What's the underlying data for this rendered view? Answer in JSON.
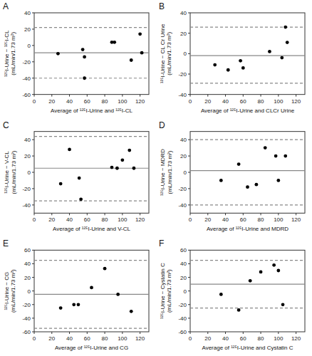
{
  "chart_data": [
    {
      "type": "scatter",
      "title": "A",
      "x_label": "Average of ¹²⁵I-Urine and ¹²⁵I-CL",
      "y_label": "¹²⁵I-Urine − ¹²⁵I-CL (mL/min/1.73 m²)",
      "x": [
        27,
        55,
        57,
        57,
        88,
        91,
        110,
        120,
        122
      ],
      "values": [
        -10,
        -5,
        -14,
        -40,
        4,
        4,
        -18,
        14,
        -9
      ],
      "color": "black",
      "lines": [
        {
          "value": -9,
          "color": "#888888",
          "line_style": "solid"
        },
        {
          "value": 22,
          "color": "#888888",
          "line_style": "dashed"
        },
        {
          "value": -40,
          "color": "#888888",
          "line_style": "dashed"
        }
      ],
      "xlim": [
        0,
        130
      ],
      "xticks": [
        0,
        20,
        40,
        60,
        80,
        100,
        120
      ],
      "ylim": [
        -60,
        40
      ],
      "yticks": [
        -60,
        -40,
        -20,
        0,
        20,
        40
      ],
      "grid": false
    },
    {
      "type": "scatter",
      "title": "B",
      "x_label": "Average of ¹²⁵I-Urine and CLCr Urine",
      "y_label": "¹²⁵I-Urine − CL Cr Urine (mL/min/1.73 m²)",
      "x": [
        28,
        43,
        57,
        60,
        90,
        104,
        108,
        110
      ],
      "values": [
        -11,
        -16,
        -7,
        -14,
        2,
        -4,
        26,
        11
      ],
      "color": "black",
      "lines": [
        {
          "value": -2,
          "color": "#888888",
          "line_style": "solid"
        },
        {
          "value": 26,
          "color": "#888888",
          "line_style": "dashed"
        },
        {
          "value": -29,
          "color": "#888888",
          "line_style": "dashed"
        }
      ],
      "xlim": [
        0,
        130
      ],
      "xticks": [
        0,
        20,
        40,
        60,
        80,
        100,
        120
      ],
      "ylim": [
        -40,
        40
      ],
      "yticks": [
        -40,
        -20,
        0,
        20,
        40
      ],
      "grid": false
    },
    {
      "type": "scatter",
      "title": "C",
      "x_label": "Average of ¹²⁵I-Urine and V-CL",
      "y_label": "¹²⁵I-Urine − V-CL (mL/min/1.73 m²)",
      "x": [
        30,
        40,
        51,
        53,
        88,
        94,
        100,
        108,
        113
      ],
      "values": [
        -14,
        28,
        -7,
        -33,
        6,
        5,
        15,
        27,
        5
      ],
      "color": "black",
      "lines": [
        {
          "value": 5,
          "color": "#888888",
          "line_style": "solid"
        },
        {
          "value": 44,
          "color": "#888888",
          "line_style": "dashed"
        },
        {
          "value": -35,
          "color": "#888888",
          "line_style": "dashed"
        }
      ],
      "xlim": [
        0,
        130
      ],
      "xticks": [
        0,
        20,
        40,
        60,
        80,
        100,
        120
      ],
      "ylim": [
        -50,
        50
      ],
      "yticks": [
        -40,
        -20,
        0,
        20,
        40
      ],
      "grid": false
    },
    {
      "type": "scatter",
      "title": "D",
      "x_label": "Average of ¹²⁵I-Urine and MDRD",
      "y_label": "¹²⁵I-Urine − MDRD (mL/min/1.73 m²)",
      "x": [
        35,
        55,
        65,
        75,
        85,
        97,
        100,
        108
      ],
      "values": [
        -10,
        10,
        -18,
        -15,
        30,
        20,
        -10,
        20
      ],
      "color": "black",
      "lines": [
        {
          "value": 2,
          "color": "#888888",
          "line_style": "solid"
        },
        {
          "value": 40,
          "color": "#888888",
          "line_style": "dashed"
        },
        {
          "value": -40,
          "color": "#888888",
          "line_style": "dashed"
        }
      ],
      "xlim": [
        0,
        130
      ],
      "xticks": [
        0,
        20,
        40,
        60,
        80,
        100,
        120
      ],
      "ylim": [
        -50,
        50
      ],
      "yticks": [
        -40,
        -20,
        0,
        20,
        40
      ],
      "grid": false
    },
    {
      "type": "scatter",
      "title": "E",
      "x_label": "Average of ¹²⁵I-Urine and CG",
      "y_label": "¹²⁵I-Urine − CG (mL/min/1.73 m²)",
      "x": [
        30,
        45,
        50,
        65,
        80,
        95,
        110
      ],
      "values": [
        -25,
        -20,
        -20,
        5,
        33,
        -5,
        -30
      ],
      "color": "black",
      "lines": [
        {
          "value": -5,
          "color": "#888888",
          "line_style": "solid"
        },
        {
          "value": 45,
          "color": "#888888",
          "line_style": "dashed"
        },
        {
          "value": -55,
          "color": "#888888",
          "line_style": "dashed"
        }
      ],
      "xlim": [
        0,
        130
      ],
      "xticks": [
        0,
        20,
        40,
        60,
        80,
        100,
        120
      ],
      "ylim": [
        -60,
        60
      ],
      "yticks": [
        -60,
        -40,
        -20,
        0,
        20,
        40,
        60
      ],
      "grid": false
    },
    {
      "type": "scatter",
      "title": "F",
      "x_label": "Average of ¹²⁵I-Urine and Cystatin C",
      "y_label": "¹²⁵I-Urine − Cystatin C (mL/min/1.73 m²)",
      "x": [
        35,
        55,
        68,
        80,
        95,
        100,
        105
      ],
      "values": [
        -5,
        -28,
        15,
        28,
        38,
        30,
        -20
      ],
      "color": "black",
      "lines": [
        {
          "value": 10,
          "color": "#888888",
          "line_style": "solid"
        },
        {
          "value": 45,
          "color": "#888888",
          "line_style": "dashed"
        },
        {
          "value": -25,
          "color": "#888888",
          "line_style": "dashed"
        }
      ],
      "xlim": [
        0,
        130
      ],
      "xticks": [
        0,
        20,
        40,
        60,
        80,
        100,
        120
      ],
      "ylim": [
        -60,
        60
      ],
      "yticks": [
        -60,
        -40,
        -20,
        0,
        20,
        40,
        60
      ],
      "grid": false
    }
  ]
}
